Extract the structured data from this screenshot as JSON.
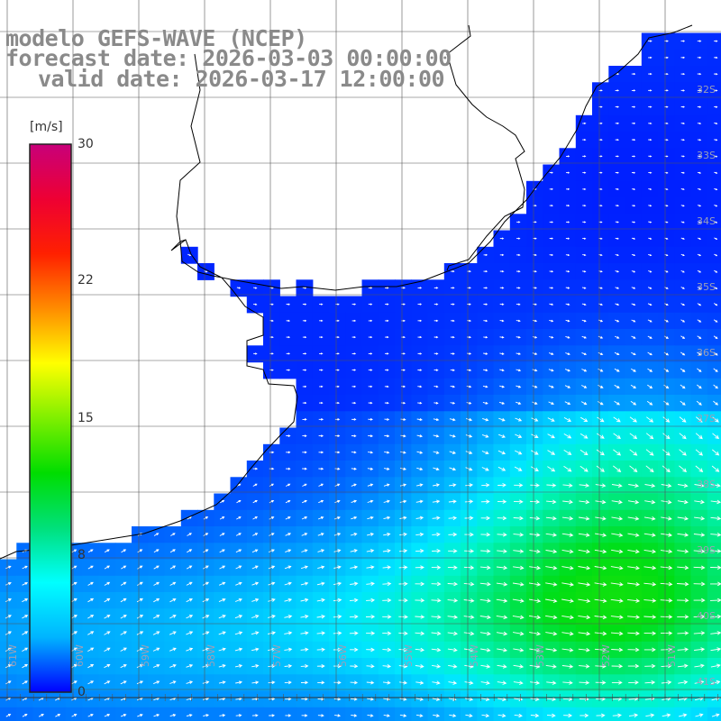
{
  "title": {
    "line1": "modelo GEFS-WAVE (NCEP)",
    "line2": "forecast date: 2026-03-03 00:00:00",
    "line3": "valid date: 2026-03-17 12:00:00"
  },
  "colorbar": {
    "unit": "[m/s]",
    "ticks": [
      "30",
      "22",
      "15",
      "8",
      "0"
    ],
    "colors": [
      "#0000ff",
      "#00b4ff",
      "#00ffff",
      "#00e07a",
      "#00dd00",
      "#7fef00",
      "#ffff00",
      "#ff8c00",
      "#ff2000",
      "#ee0033",
      "#c8007a"
    ]
  },
  "axes": {
    "lat_labels": [
      "32S",
      "33S",
      "34S",
      "35S",
      "36S",
      "37S",
      "38S",
      "39S",
      "40S",
      "41S"
    ],
    "lon_labels": [
      "61W",
      "60W",
      "59W",
      "58W",
      "57W",
      "56W",
      "55W",
      "54W",
      "53W",
      "52W",
      "51W"
    ]
  },
  "colors": {
    "land": "#ffffff",
    "grid": "#555555",
    "coast": "#000000",
    "arrow": "#ffffff"
  }
}
